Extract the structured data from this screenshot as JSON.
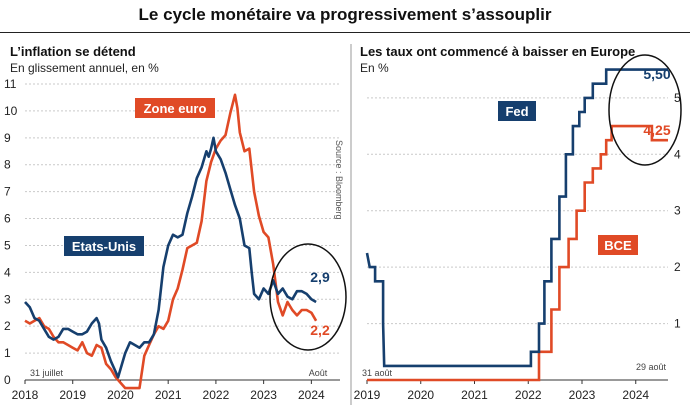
{
  "title": "Le cycle monétaire va progressivement s’assouplir",
  "colors": {
    "blue": "#163f6e",
    "red": "#e04a26",
    "grid": "#c9c9c9",
    "axis": "#333333"
  },
  "chart_data": [
    {
      "type": "line",
      "title": "L’inflation se détend",
      "subtitle": "En glissement annuel, en %",
      "source": "Source : Bloomberg",
      "ylim": [
        0,
        11
      ],
      "yticks": [
        "0",
        "1",
        "2",
        "3",
        "4",
        "5",
        "6",
        "7",
        "8",
        "9",
        "10",
        "11"
      ],
      "xlim": [
        2018.0,
        2024.6
      ],
      "xticks": [
        {
          "label": "2018",
          "x": 2018.0
        },
        {
          "label": "2019",
          "x": 2019.0
        },
        {
          "label": "2020",
          "x": 2020.0
        },
        {
          "label": "2021",
          "x": 2021.0
        },
        {
          "label": "2022",
          "x": 2022.0
        },
        {
          "label": "2023",
          "x": 2023.0
        },
        {
          "label": "2024",
          "x": 2024.0
        }
      ],
      "start_note": "31 juillet",
      "end_note": "Août",
      "highlight_values": {
        "us": "2,9",
        "euro": "2,2"
      },
      "series": [
        {
          "name": "Etats-Unis",
          "color": "blue",
          "points": [
            [
              2018.0,
              2.9
            ],
            [
              2018.1,
              2.7
            ],
            [
              2018.2,
              2.3
            ],
            [
              2018.3,
              2.2
            ],
            [
              2018.4,
              1.9
            ],
            [
              2018.5,
              1.6
            ],
            [
              2018.6,
              1.5
            ],
            [
              2018.7,
              1.6
            ],
            [
              2018.8,
              1.9
            ],
            [
              2018.9,
              1.9
            ],
            [
              2019.0,
              1.8
            ],
            [
              2019.1,
              1.7
            ],
            [
              2019.2,
              1.7
            ],
            [
              2019.3,
              1.8
            ],
            [
              2019.4,
              2.1
            ],
            [
              2019.5,
              2.3
            ],
            [
              2019.55,
              2.1
            ],
            [
              2019.6,
              1.5
            ],
            [
              2019.7,
              1.2
            ],
            [
              2019.8,
              0.7
            ],
            [
              2019.9,
              0.3
            ],
            [
              2019.95,
              0.1
            ],
            [
              2020.05,
              0.7
            ],
            [
              2020.1,
              1.0
            ],
            [
              2020.2,
              1.4
            ],
            [
              2020.3,
              1.3
            ],
            [
              2020.4,
              1.2
            ],
            [
              2020.5,
              1.4
            ],
            [
              2020.6,
              1.4
            ],
            [
              2020.7,
              1.7
            ],
            [
              2020.8,
              2.6
            ],
            [
              2020.9,
              4.2
            ],
            [
              2021.0,
              5.0
            ],
            [
              2021.1,
              5.4
            ],
            [
              2021.2,
              5.3
            ],
            [
              2021.3,
              5.4
            ],
            [
              2021.4,
              6.2
            ],
            [
              2021.5,
              6.8
            ],
            [
              2021.6,
              7.5
            ],
            [
              2021.7,
              7.9
            ],
            [
              2021.8,
              8.5
            ],
            [
              2021.85,
              8.3
            ],
            [
              2021.9,
              8.6
            ],
            [
              2021.95,
              9.0
            ],
            [
              2022.0,
              8.5
            ],
            [
              2022.1,
              8.2
            ],
            [
              2022.2,
              7.7
            ],
            [
              2022.3,
              7.1
            ],
            [
              2022.4,
              6.5
            ],
            [
              2022.5,
              6.0
            ],
            [
              2022.6,
              5.0
            ],
            [
              2022.7,
              4.9
            ],
            [
              2022.75,
              4.0
            ],
            [
              2022.8,
              3.2
            ],
            [
              2022.9,
              3.0
            ],
            [
              2023.0,
              3.4
            ],
            [
              2023.1,
              3.2
            ],
            [
              2023.2,
              3.7
            ],
            [
              2023.3,
              3.2
            ],
            [
              2023.4,
              3.4
            ],
            [
              2023.5,
              3.1
            ],
            [
              2023.6,
              3.0
            ],
            [
              2023.7,
              3.3
            ],
            [
              2023.8,
              3.3
            ],
            [
              2023.9,
              3.2
            ],
            [
              2024.0,
              3.0
            ],
            [
              2024.1,
              2.9
            ]
          ]
        },
        {
          "name": "Zone euro",
          "color": "red",
          "points": [
            [
              2018.0,
              2.2
            ],
            [
              2018.1,
              2.1
            ],
            [
              2018.2,
              2.2
            ],
            [
              2018.3,
              2.3
            ],
            [
              2018.4,
              2.0
            ],
            [
              2018.5,
              1.9
            ],
            [
              2018.6,
              1.6
            ],
            [
              2018.7,
              1.4
            ],
            [
              2018.8,
              1.4
            ],
            [
              2018.9,
              1.3
            ],
            [
              2019.0,
              1.2
            ],
            [
              2019.1,
              1.1
            ],
            [
              2019.2,
              1.4
            ],
            [
              2019.3,
              1.0
            ],
            [
              2019.4,
              0.9
            ],
            [
              2019.5,
              1.3
            ],
            [
              2019.6,
              1.2
            ],
            [
              2019.7,
              0.6
            ],
            [
              2019.8,
              0.4
            ],
            [
              2019.9,
              0.1
            ],
            [
              2020.0,
              -0.1
            ],
            [
              2020.1,
              -0.3
            ],
            [
              2020.2,
              -0.3
            ],
            [
              2020.3,
              -0.3
            ],
            [
              2020.4,
              -0.3
            ],
            [
              2020.5,
              0.9
            ],
            [
              2020.6,
              1.3
            ],
            [
              2020.7,
              1.7
            ],
            [
              2020.8,
              2.0
            ],
            [
              2020.9,
              1.9
            ],
            [
              2021.0,
              2.2
            ],
            [
              2021.1,
              3.0
            ],
            [
              2021.2,
              3.4
            ],
            [
              2021.3,
              4.1
            ],
            [
              2021.4,
              4.9
            ],
            [
              2021.5,
              5.0
            ],
            [
              2021.6,
              5.1
            ],
            [
              2021.7,
              5.9
            ],
            [
              2021.8,
              7.4
            ],
            [
              2021.9,
              8.1
            ],
            [
              2022.0,
              8.6
            ],
            [
              2022.1,
              8.9
            ],
            [
              2022.2,
              9.1
            ],
            [
              2022.3,
              9.9
            ],
            [
              2022.4,
              10.6
            ],
            [
              2022.45,
              10.1
            ],
            [
              2022.5,
              9.2
            ],
            [
              2022.6,
              8.5
            ],
            [
              2022.7,
              8.6
            ],
            [
              2022.8,
              7.0
            ],
            [
              2022.9,
              6.1
            ],
            [
              2023.0,
              5.5
            ],
            [
              2023.1,
              5.3
            ],
            [
              2023.2,
              4.3
            ],
            [
              2023.3,
              2.9
            ],
            [
              2023.4,
              2.4
            ],
            [
              2023.5,
              2.9
            ],
            [
              2023.6,
              2.6
            ],
            [
              2023.7,
              2.4
            ],
            [
              2023.8,
              2.6
            ],
            [
              2023.9,
              2.6
            ],
            [
              2024.0,
              2.5
            ],
            [
              2024.1,
              2.2
            ]
          ]
        }
      ],
      "labels": {
        "us": "Etats-Unis",
        "euro": "Zone euro"
      }
    },
    {
      "type": "line",
      "title": "Les taux ont commencé à baisser en Europe",
      "subtitle": "En %",
      "ylim": [
        0,
        5.6
      ],
      "yticks": [
        "1",
        "2",
        "3",
        "4",
        "5"
      ],
      "xlim": [
        2019.0,
        2024.6
      ],
      "xticks": [
        {
          "label": "2019",
          "x": 2019.0
        },
        {
          "label": "2020",
          "x": 2020.0
        },
        {
          "label": "2021",
          "x": 2021.0
        },
        {
          "label": "2022",
          "x": 2022.0
        },
        {
          "label": "2023",
          "x": 2023.0
        },
        {
          "label": "2024",
          "x": 2024.0
        }
      ],
      "start_note": "31 août",
      "end_note": "29 août",
      "highlight_values": {
        "fed": "5,50",
        "bce": "4,25"
      },
      "series": [
        {
          "name": "Fed",
          "color": "blue",
          "step": true,
          "points": [
            [
              2019.0,
              2.25
            ],
            [
              2019.05,
              2.0
            ],
            [
              2019.15,
              2.0
            ],
            [
              2019.15,
              1.75
            ],
            [
              2019.3,
              1.75
            ],
            [
              2019.3,
              1.0
            ],
            [
              2019.32,
              0.25
            ],
            [
              2022.05,
              0.25
            ],
            [
              2022.05,
              0.5
            ],
            [
              2022.2,
              0.5
            ],
            [
              2022.2,
              1.0
            ],
            [
              2022.3,
              1.0
            ],
            [
              2022.3,
              1.75
            ],
            [
              2022.43,
              1.75
            ],
            [
              2022.43,
              2.5
            ],
            [
              2022.58,
              2.5
            ],
            [
              2022.58,
              3.25
            ],
            [
              2022.7,
              3.25
            ],
            [
              2022.7,
              4.0
            ],
            [
              2022.83,
              4.0
            ],
            [
              2022.83,
              4.5
            ],
            [
              2022.95,
              4.5
            ],
            [
              2022.95,
              4.75
            ],
            [
              2023.05,
              4.75
            ],
            [
              2023.05,
              5.0
            ],
            [
              2023.2,
              5.0
            ],
            [
              2023.2,
              5.25
            ],
            [
              2023.45,
              5.25
            ],
            [
              2023.45,
              5.5
            ],
            [
              2024.6,
              5.5
            ]
          ]
        },
        {
          "name": "BCE",
          "color": "red",
          "step": true,
          "points": [
            [
              2019.0,
              0.0
            ],
            [
              2022.2,
              0.0
            ],
            [
              2022.2,
              0.5
            ],
            [
              2022.43,
              0.5
            ],
            [
              2022.43,
              1.25
            ],
            [
              2022.58,
              1.25
            ],
            [
              2022.58,
              2.0
            ],
            [
              2022.75,
              2.0
            ],
            [
              2022.75,
              2.5
            ],
            [
              2022.9,
              2.5
            ],
            [
              2022.9,
              3.0
            ],
            [
              2023.05,
              3.0
            ],
            [
              2023.05,
              3.5
            ],
            [
              2023.2,
              3.5
            ],
            [
              2023.2,
              3.75
            ],
            [
              2023.35,
              3.75
            ],
            [
              2023.35,
              4.0
            ],
            [
              2023.45,
              4.0
            ],
            [
              2023.45,
              4.25
            ],
            [
              2023.55,
              4.25
            ],
            [
              2023.55,
              4.5
            ],
            [
              2024.3,
              4.5
            ],
            [
              2024.3,
              4.25
            ],
            [
              2024.6,
              4.25
            ]
          ]
        }
      ],
      "labels": {
        "fed": "Fed",
        "bce": "BCE"
      }
    }
  ]
}
